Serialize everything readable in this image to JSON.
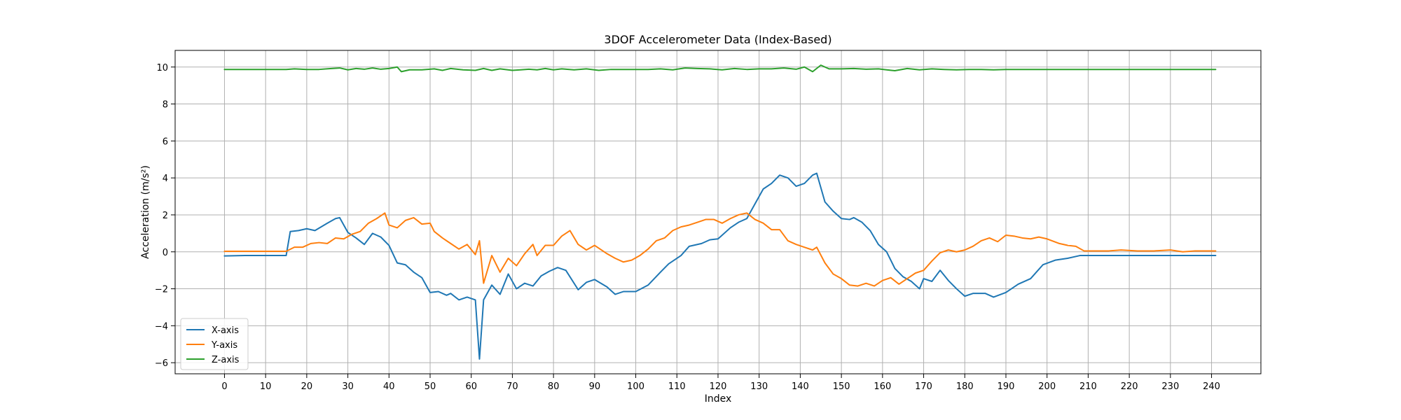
{
  "chart_data": {
    "type": "line",
    "title": "3DOF Accelerometer Data (Index-Based)",
    "xlabel": "Index",
    "ylabel": "Acceleration (m/s²)",
    "xlim": [
      -12,
      252
    ],
    "ylim": [
      -6.6,
      10.9
    ],
    "xticks": [
      0,
      10,
      20,
      30,
      40,
      50,
      60,
      70,
      80,
      90,
      100,
      110,
      120,
      130,
      140,
      150,
      160,
      170,
      180,
      190,
      200,
      210,
      220,
      230,
      240
    ],
    "yticks": [
      -6,
      -4,
      -2,
      0,
      2,
      4,
      6,
      8,
      10
    ],
    "grid": true,
    "legend": "lower-left",
    "series": [
      {
        "name": "X-axis",
        "color": "#1f77b4",
        "points": [
          [
            0,
            -0.22
          ],
          [
            5,
            -0.2
          ],
          [
            10,
            -0.2
          ],
          [
            15,
            -0.2
          ],
          [
            16,
            1.1
          ],
          [
            18,
            1.15
          ],
          [
            20,
            1.25
          ],
          [
            22,
            1.15
          ],
          [
            25,
            1.55
          ],
          [
            27,
            1.8
          ],
          [
            28,
            1.85
          ],
          [
            30,
            1.05
          ],
          [
            32,
            0.75
          ],
          [
            34,
            0.4
          ],
          [
            36,
            1.0
          ],
          [
            38,
            0.8
          ],
          [
            40,
            0.35
          ],
          [
            42,
            -0.6
          ],
          [
            44,
            -0.7
          ],
          [
            46,
            -1.1
          ],
          [
            48,
            -1.4
          ],
          [
            50,
            -2.2
          ],
          [
            52,
            -2.15
          ],
          [
            54,
            -2.35
          ],
          [
            55,
            -2.25
          ],
          [
            57,
            -2.6
          ],
          [
            59,
            -2.45
          ],
          [
            61,
            -2.6
          ],
          [
            62,
            -5.8
          ],
          [
            63,
            -2.6
          ],
          [
            65,
            -1.8
          ],
          [
            67,
            -2.3
          ],
          [
            69,
            -1.2
          ],
          [
            71,
            -2.0
          ],
          [
            73,
            -1.7
          ],
          [
            75,
            -1.85
          ],
          [
            77,
            -1.3
          ],
          [
            79,
            -1.05
          ],
          [
            81,
            -0.85
          ],
          [
            83,
            -1.0
          ],
          [
            86,
            -2.05
          ],
          [
            88,
            -1.65
          ],
          [
            90,
            -1.5
          ],
          [
            93,
            -1.9
          ],
          [
            95,
            -2.3
          ],
          [
            97,
            -2.15
          ],
          [
            100,
            -2.15
          ],
          [
            103,
            -1.8
          ],
          [
            106,
            -1.1
          ],
          [
            108,
            -0.65
          ],
          [
            111,
            -0.2
          ],
          [
            113,
            0.3
          ],
          [
            116,
            0.45
          ],
          [
            118,
            0.65
          ],
          [
            120,
            0.7
          ],
          [
            123,
            1.3
          ],
          [
            125,
            1.6
          ],
          [
            127,
            1.8
          ],
          [
            129,
            2.6
          ],
          [
            131,
            3.4
          ],
          [
            133,
            3.7
          ],
          [
            135,
            4.15
          ],
          [
            137,
            4.0
          ],
          [
            139,
            3.55
          ],
          [
            141,
            3.7
          ],
          [
            143,
            4.15
          ],
          [
            144,
            4.25
          ],
          [
            146,
            2.7
          ],
          [
            148,
            2.2
          ],
          [
            150,
            1.8
          ],
          [
            152,
            1.75
          ],
          [
            153,
            1.85
          ],
          [
            155,
            1.6
          ],
          [
            157,
            1.15
          ],
          [
            159,
            0.4
          ],
          [
            161,
            0.0
          ],
          [
            163,
            -0.9
          ],
          [
            165,
            -1.35
          ],
          [
            167,
            -1.6
          ],
          [
            169,
            -2.0
          ],
          [
            170,
            -1.45
          ],
          [
            172,
            -1.6
          ],
          [
            174,
            -1.0
          ],
          [
            176,
            -1.55
          ],
          [
            178,
            -2.0
          ],
          [
            180,
            -2.4
          ],
          [
            182,
            -2.25
          ],
          [
            185,
            -2.25
          ],
          [
            187,
            -2.45
          ],
          [
            190,
            -2.2
          ],
          [
            193,
            -1.75
          ],
          [
            196,
            -1.45
          ],
          [
            199,
            -0.7
          ],
          [
            202,
            -0.45
          ],
          [
            205,
            -0.35
          ],
          [
            208,
            -0.2
          ],
          [
            215,
            -0.2
          ],
          [
            220,
            -0.2
          ],
          [
            225,
            -0.2
          ],
          [
            230,
            -0.2
          ],
          [
            235,
            -0.2
          ],
          [
            241,
            -0.2
          ]
        ]
      },
      {
        "name": "Y-axis",
        "color": "#ff7f0e",
        "points": [
          [
            0,
            0.03
          ],
          [
            5,
            0.03
          ],
          [
            10,
            0.03
          ],
          [
            15,
            0.03
          ],
          [
            17,
            0.25
          ],
          [
            19,
            0.25
          ],
          [
            21,
            0.45
          ],
          [
            23,
            0.5
          ],
          [
            25,
            0.45
          ],
          [
            27,
            0.75
          ],
          [
            29,
            0.7
          ],
          [
            31,
            0.95
          ],
          [
            33,
            1.1
          ],
          [
            35,
            1.55
          ],
          [
            37,
            1.8
          ],
          [
            39,
            2.1
          ],
          [
            40,
            1.45
          ],
          [
            42,
            1.3
          ],
          [
            44,
            1.7
          ],
          [
            46,
            1.85
          ],
          [
            48,
            1.5
          ],
          [
            50,
            1.55
          ],
          [
            51,
            1.1
          ],
          [
            53,
            0.75
          ],
          [
            55,
            0.45
          ],
          [
            57,
            0.15
          ],
          [
            59,
            0.4
          ],
          [
            61,
            -0.15
          ],
          [
            62,
            0.6
          ],
          [
            63,
            -1.7
          ],
          [
            65,
            -0.2
          ],
          [
            67,
            -1.1
          ],
          [
            69,
            -0.35
          ],
          [
            71,
            -0.75
          ],
          [
            73,
            -0.1
          ],
          [
            75,
            0.4
          ],
          [
            76,
            -0.2
          ],
          [
            78,
            0.35
          ],
          [
            80,
            0.35
          ],
          [
            82,
            0.85
          ],
          [
            84,
            1.15
          ],
          [
            86,
            0.4
          ],
          [
            88,
            0.1
          ],
          [
            90,
            0.35
          ],
          [
            93,
            -0.1
          ],
          [
            95,
            -0.35
          ],
          [
            97,
            -0.55
          ],
          [
            99,
            -0.45
          ],
          [
            101,
            -0.2
          ],
          [
            103,
            0.15
          ],
          [
            105,
            0.6
          ],
          [
            107,
            0.75
          ],
          [
            109,
            1.15
          ],
          [
            111,
            1.35
          ],
          [
            113,
            1.45
          ],
          [
            115,
            1.6
          ],
          [
            117,
            1.75
          ],
          [
            119,
            1.75
          ],
          [
            121,
            1.55
          ],
          [
            123,
            1.8
          ],
          [
            125,
            2.0
          ],
          [
            127,
            2.1
          ],
          [
            129,
            1.75
          ],
          [
            131,
            1.55
          ],
          [
            133,
            1.2
          ],
          [
            135,
            1.2
          ],
          [
            137,
            0.6
          ],
          [
            139,
            0.4
          ],
          [
            141,
            0.25
          ],
          [
            143,
            0.1
          ],
          [
            144,
            0.25
          ],
          [
            146,
            -0.6
          ],
          [
            148,
            -1.2
          ],
          [
            150,
            -1.45
          ],
          [
            152,
            -1.8
          ],
          [
            154,
            -1.85
          ],
          [
            156,
            -1.7
          ],
          [
            158,
            -1.85
          ],
          [
            160,
            -1.55
          ],
          [
            162,
            -1.4
          ],
          [
            164,
            -1.75
          ],
          [
            166,
            -1.45
          ],
          [
            168,
            -1.15
          ],
          [
            170,
            -1.0
          ],
          [
            172,
            -0.5
          ],
          [
            174,
            -0.05
          ],
          [
            176,
            0.1
          ],
          [
            178,
            0.0
          ],
          [
            180,
            0.1
          ],
          [
            182,
            0.3
          ],
          [
            184,
            0.6
          ],
          [
            186,
            0.75
          ],
          [
            188,
            0.55
          ],
          [
            190,
            0.9
          ],
          [
            192,
            0.85
          ],
          [
            194,
            0.75
          ],
          [
            196,
            0.7
          ],
          [
            198,
            0.8
          ],
          [
            200,
            0.7
          ],
          [
            203,
            0.45
          ],
          [
            205,
            0.35
          ],
          [
            207,
            0.3
          ],
          [
            209,
            0.05
          ],
          [
            212,
            0.05
          ],
          [
            215,
            0.05
          ],
          [
            218,
            0.1
          ],
          [
            222,
            0.05
          ],
          [
            226,
            0.05
          ],
          [
            230,
            0.1
          ],
          [
            233,
            0.0
          ],
          [
            236,
            0.05
          ],
          [
            241,
            0.05
          ]
        ]
      },
      {
        "name": "Z-axis",
        "color": "#2ca02c",
        "points": [
          [
            0,
            9.87
          ],
          [
            5,
            9.87
          ],
          [
            10,
            9.87
          ],
          [
            15,
            9.87
          ],
          [
            17,
            9.9
          ],
          [
            20,
            9.87
          ],
          [
            23,
            9.87
          ],
          [
            26,
            9.92
          ],
          [
            28,
            9.95
          ],
          [
            30,
            9.85
          ],
          [
            32,
            9.92
          ],
          [
            34,
            9.88
          ],
          [
            36,
            9.95
          ],
          [
            38,
            9.88
          ],
          [
            40,
            9.92
          ],
          [
            42,
            10.0
          ],
          [
            43,
            9.75
          ],
          [
            45,
            9.85
          ],
          [
            48,
            9.85
          ],
          [
            51,
            9.9
          ],
          [
            53,
            9.82
          ],
          [
            55,
            9.92
          ],
          [
            58,
            9.85
          ],
          [
            61,
            9.82
          ],
          [
            63,
            9.92
          ],
          [
            65,
            9.82
          ],
          [
            67,
            9.9
          ],
          [
            70,
            9.82
          ],
          [
            72,
            9.85
          ],
          [
            74,
            9.88
          ],
          [
            76,
            9.85
          ],
          [
            78,
            9.92
          ],
          [
            80,
            9.85
          ],
          [
            82,
            9.9
          ],
          [
            85,
            9.85
          ],
          [
            88,
            9.9
          ],
          [
            91,
            9.82
          ],
          [
            94,
            9.87
          ],
          [
            97,
            9.87
          ],
          [
            100,
            9.87
          ],
          [
            103,
            9.87
          ],
          [
            106,
            9.9
          ],
          [
            109,
            9.85
          ],
          [
            112,
            9.95
          ],
          [
            115,
            9.92
          ],
          [
            118,
            9.9
          ],
          [
            121,
            9.85
          ],
          [
            124,
            9.92
          ],
          [
            127,
            9.87
          ],
          [
            130,
            9.9
          ],
          [
            133,
            9.9
          ],
          [
            136,
            9.95
          ],
          [
            139,
            9.88
          ],
          [
            141,
            10.0
          ],
          [
            143,
            9.75
          ],
          [
            145,
            10.1
          ],
          [
            147,
            9.9
          ],
          [
            150,
            9.9
          ],
          [
            153,
            9.92
          ],
          [
            156,
            9.88
          ],
          [
            159,
            9.9
          ],
          [
            161,
            9.85
          ],
          [
            163,
            9.8
          ],
          [
            166,
            9.92
          ],
          [
            169,
            9.85
          ],
          [
            172,
            9.9
          ],
          [
            175,
            9.87
          ],
          [
            178,
            9.85
          ],
          [
            181,
            9.87
          ],
          [
            184,
            9.87
          ],
          [
            187,
            9.85
          ],
          [
            190,
            9.87
          ],
          [
            195,
            9.87
          ],
          [
            200,
            9.87
          ],
          [
            205,
            9.87
          ],
          [
            210,
            9.87
          ],
          [
            215,
            9.87
          ],
          [
            220,
            9.87
          ],
          [
            225,
            9.87
          ],
          [
            230,
            9.87
          ],
          [
            235,
            9.87
          ],
          [
            241,
            9.87
          ]
        ]
      }
    ]
  }
}
